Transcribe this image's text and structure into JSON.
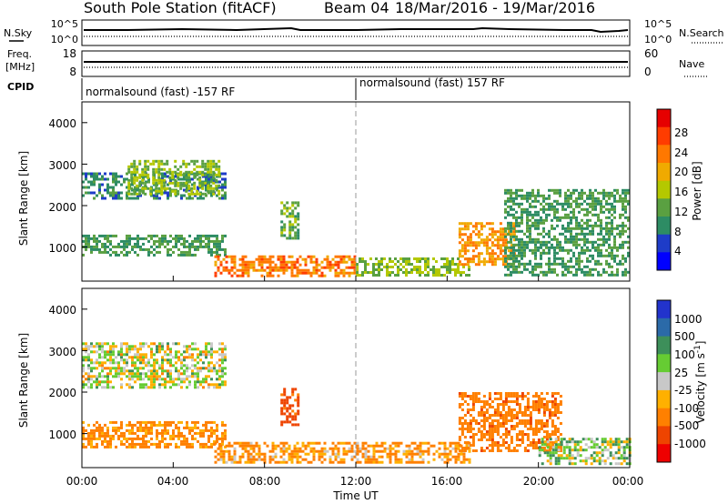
{
  "header": {
    "station": "South Pole Station (fitACF)",
    "beam": "Beam 04",
    "date_range": "18/Mar/2016 - 19/Mar/2016"
  },
  "sky_panel": {
    "left_label": "N.Sky",
    "left_ticks": [
      "10^5",
      "10^0"
    ],
    "right_label": "N.Search",
    "right_ticks": [
      "10^5",
      "10^0"
    ]
  },
  "freq_panel": {
    "left_label_1": "Freq.",
    "left_label_2": "[MHz]",
    "left_ticks": [
      "18",
      "8"
    ],
    "right_label": "Nave",
    "right_ticks": [
      "60",
      "0"
    ]
  },
  "cpid_panel": {
    "label": "CPID",
    "segments": [
      "normalsound (fast) -157 RF",
      "normalsound (fast) 157 RF"
    ]
  },
  "power_panel": {
    "ylabel": "Slant Range [km]",
    "yticks": [
      "4000",
      "3000",
      "2000",
      "1000"
    ],
    "colorbar_label": "Power [dB]",
    "colorbar_ticks": [
      "28",
      "24",
      "20",
      "16",
      "12",
      "8",
      "4"
    ]
  },
  "velocity_panel": {
    "ylabel": "Slant Range [km]",
    "yticks": [
      "4000",
      "3000",
      "2000",
      "1000"
    ],
    "colorbar_label": "Velocity [m s",
    "colorbar_label_sup": "-1",
    "colorbar_label_end": "]",
    "colorbar_ticks": [
      "1000",
      "500",
      "100",
      "25",
      "-25",
      "-100",
      "-500",
      "-1000"
    ]
  },
  "xaxis": {
    "label": "Time UT",
    "ticks": [
      "00:00",
      "04:00",
      "08:00",
      "12:00",
      "16:00",
      "20:00",
      "00:00"
    ]
  },
  "colors": {
    "power_scale": [
      "#0000ff",
      "#1e3cc8",
      "#2d8c64",
      "#5aa041",
      "#b4c800",
      "#f0aa00",
      "#ff7800",
      "#ff3c00",
      "#e60000"
    ],
    "velocity_scale": [
      "#2233cc",
      "#2b6aa8",
      "#3d8f5a",
      "#66cc33",
      "#c8c8c8",
      "#ffb000",
      "#ff8000",
      "#ee4400",
      "#ee0000"
    ]
  },
  "chart_data": [
    {
      "type": "heatmap",
      "title": "Power",
      "xlabel": "Time UT",
      "ylabel": "Slant Range [km]",
      "xlim": [
        0,
        24
      ],
      "ylim": [
        180,
        4500
      ],
      "colorbar": {
        "label": "Power [dB]",
        "range": [
          0,
          32
        ],
        "ticks": [
          4,
          8,
          12,
          16,
          20,
          24,
          28
        ]
      },
      "regions": [
        {
          "t0": 0.0,
          "t1": 6.3,
          "r0": 2150,
          "r1": 2800,
          "value": 8
        },
        {
          "t0": 2.0,
          "t1": 6.0,
          "r0": 2300,
          "r1": 3100,
          "value": 14
        },
        {
          "t0": 0.0,
          "t1": 6.3,
          "r0": 800,
          "r1": 1300,
          "value": 10
        },
        {
          "t0": 8.7,
          "t1": 9.5,
          "r0": 1200,
          "r1": 2100,
          "value": 12
        },
        {
          "t0": 5.8,
          "t1": 12.0,
          "r0": 300,
          "r1": 800,
          "value": 24
        },
        {
          "t0": 12.0,
          "t1": 17.0,
          "r0": 300,
          "r1": 750,
          "value": 14
        },
        {
          "t0": 16.5,
          "t1": 19.0,
          "r0": 600,
          "r1": 1600,
          "value": 22
        },
        {
          "t0": 18.5,
          "t1": 24.0,
          "r0": 300,
          "r1": 2400,
          "value": 10
        }
      ]
    },
    {
      "type": "heatmap",
      "title": "Velocity",
      "xlabel": "Time UT",
      "ylabel": "Slant Range [km]",
      "xlim": [
        0,
        24
      ],
      "ylim": [
        180,
        4500
      ],
      "colorbar": {
        "label": "Velocity [m s-1]",
        "ticks": [
          1000,
          500,
          100,
          25,
          -25,
          -100,
          -500,
          -1000
        ]
      },
      "regions": [
        {
          "t0": 0.0,
          "t1": 6.3,
          "r0": 2100,
          "r1": 3200,
          "value": 0
        },
        {
          "t0": 0.0,
          "t1": 6.3,
          "r0": 700,
          "r1": 1300,
          "value": -150
        },
        {
          "t0": 8.7,
          "t1": 9.5,
          "r0": 1200,
          "r1": 2100,
          "value": -600
        },
        {
          "t0": 5.8,
          "t1": 17.0,
          "r0": 300,
          "r1": 800,
          "value": -120
        },
        {
          "t0": 16.5,
          "t1": 21.0,
          "r0": 600,
          "r1": 2000,
          "value": -400
        },
        {
          "t0": 20.0,
          "t1": 24.0,
          "r0": 300,
          "r1": 900,
          "value": 50
        }
      ]
    }
  ]
}
